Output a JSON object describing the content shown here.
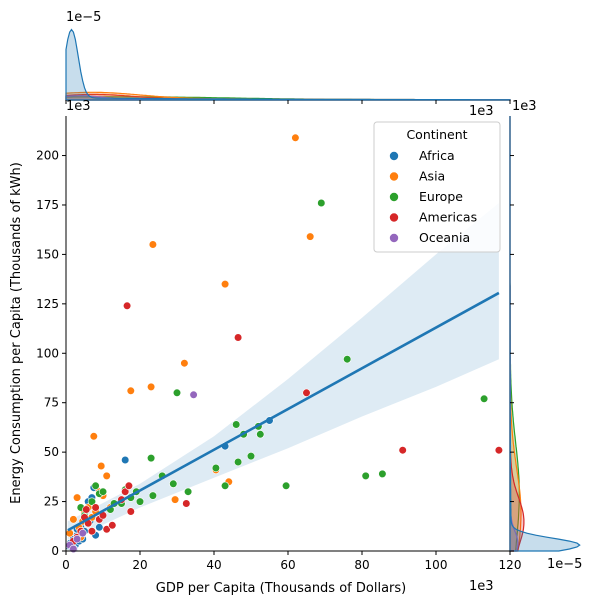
{
  "chart_data": {
    "type": "scatter",
    "xlabel": "GDP per Capita (Thousands of Dollars)",
    "ylabel": "Energy Consumption per Capita (Thousands of kWh)",
    "xlim": [
      0,
      120
    ],
    "ylim": [
      0,
      220
    ],
    "x_ticks": [
      0,
      20,
      40,
      60,
      80,
      100,
      120
    ],
    "y_ticks": [
      0,
      25,
      50,
      75,
      100,
      125,
      150,
      175,
      200
    ],
    "x_offset_text": "1e3",
    "y_offset_text": "1e3",
    "top_marginal_offset_text": "1e−5",
    "right_marginal_offset_text": "1e−5",
    "right_marginal_top_text": "1e3",
    "top_marginal_right_text": "1e3",
    "legend": {
      "title": "Continent",
      "position": "top-right",
      "entries": [
        "Africa",
        "Asia",
        "Europe",
        "Americas",
        "Oceania"
      ]
    },
    "colors": {
      "Africa": "#1f77b4",
      "Asia": "#ff7f0e",
      "Europe": "#2ca02c",
      "Americas": "#d62728",
      "Oceania": "#9467bd",
      "regression": "#1f77b4",
      "ci_band": "#1f77b4"
    },
    "regression": {
      "x_range": [
        0.5,
        117
      ],
      "intercept": 10,
      "slope": 1.03,
      "ci_low": [
        [
          0.5,
          5
        ],
        [
          20,
          22
        ],
        [
          40,
          37
        ],
        [
          60,
          52
        ],
        [
          80,
          68
        ],
        [
          100,
          83
        ],
        [
          117,
          97
        ]
      ],
      "ci_high": [
        [
          0.5,
          15
        ],
        [
          20,
          34
        ],
        [
          40,
          58
        ],
        [
          60,
          87
        ],
        [
          80,
          118
        ],
        [
          100,
          150
        ],
        [
          117,
          176
        ]
      ]
    },
    "series": [
      {
        "name": "Africa",
        "points": [
          [
            0.8,
            2.5
          ],
          [
            1.2,
            4
          ],
          [
            1.5,
            1.8
          ],
          [
            2,
            6
          ],
          [
            2.5,
            3
          ],
          [
            3,
            8
          ],
          [
            3.5,
            5
          ],
          [
            4,
            12
          ],
          [
            4.5,
            6
          ],
          [
            5,
            10
          ],
          [
            6,
            25
          ],
          [
            6.5,
            15
          ],
          [
            7,
            27
          ],
          [
            7.5,
            32
          ],
          [
            8,
            8
          ],
          [
            9,
            12
          ],
          [
            3,
            11
          ],
          [
            16,
            46
          ],
          [
            55,
            66
          ],
          [
            43,
            53
          ],
          [
            2.2,
            1
          ]
        ]
      },
      {
        "name": "Asia",
        "points": [
          [
            1,
            9
          ],
          [
            2,
            16
          ],
          [
            3,
            27
          ],
          [
            3.5,
            12
          ],
          [
            4,
            7
          ],
          [
            5,
            20
          ],
          [
            6,
            22
          ],
          [
            7,
            17
          ],
          [
            7.5,
            58
          ],
          [
            9,
            30
          ],
          [
            9.5,
            43
          ],
          [
            10,
            28
          ],
          [
            11,
            38
          ],
          [
            12,
            22
          ],
          [
            17.5,
            81
          ],
          [
            23,
            83
          ],
          [
            23.5,
            155
          ],
          [
            32,
            95
          ],
          [
            29.5,
            26
          ],
          [
            40.5,
            41
          ],
          [
            43,
            135
          ],
          [
            44,
            35
          ],
          [
            62,
            209
          ],
          [
            66,
            159
          ],
          [
            4.5,
            15
          ],
          [
            8,
            20
          ]
        ]
      },
      {
        "name": "Europe",
        "points": [
          [
            4,
            22
          ],
          [
            5,
            18
          ],
          [
            6,
            14
          ],
          [
            7,
            25
          ],
          [
            8,
            33
          ],
          [
            9,
            29
          ],
          [
            10,
            30
          ],
          [
            12,
            21
          ],
          [
            13,
            24
          ],
          [
            15,
            24
          ],
          [
            16,
            31
          ],
          [
            17.5,
            27
          ],
          [
            19,
            30
          ],
          [
            20,
            25
          ],
          [
            23,
            47
          ],
          [
            23.5,
            28
          ],
          [
            26,
            38
          ],
          [
            29,
            34
          ],
          [
            30,
            80
          ],
          [
            33,
            30
          ],
          [
            40.5,
            42
          ],
          [
            43,
            33
          ],
          [
            46,
            64
          ],
          [
            46.5,
            45
          ],
          [
            48,
            59
          ],
          [
            50,
            48
          ],
          [
            52,
            63
          ],
          [
            52.5,
            59
          ],
          [
            59.5,
            33
          ],
          [
            69,
            176
          ],
          [
            76,
            97
          ],
          [
            81,
            38
          ],
          [
            85.5,
            39
          ],
          [
            113,
            77
          ]
        ]
      },
      {
        "name": "Americas",
        "points": [
          [
            2,
            5
          ],
          [
            3,
            7
          ],
          [
            4,
            10
          ],
          [
            5,
            17
          ],
          [
            5.5,
            21
          ],
          [
            6,
            14
          ],
          [
            7,
            10
          ],
          [
            8,
            22
          ],
          [
            9,
            16
          ],
          [
            10,
            18
          ],
          [
            11,
            11
          ],
          [
            12.5,
            13
          ],
          [
            15,
            26
          ],
          [
            16,
            30
          ],
          [
            16.5,
            124
          ],
          [
            17,
            33
          ],
          [
            17.5,
            20
          ],
          [
            32.5,
            24
          ],
          [
            46.5,
            108
          ],
          [
            65,
            80
          ],
          [
            91,
            51
          ],
          [
            117,
            51
          ]
        ]
      },
      {
        "name": "Oceania",
        "points": [
          [
            1,
            3
          ],
          [
            2,
            1
          ],
          [
            3,
            6
          ],
          [
            4.5,
            9
          ],
          [
            34.5,
            79
          ]
        ]
      }
    ]
  }
}
